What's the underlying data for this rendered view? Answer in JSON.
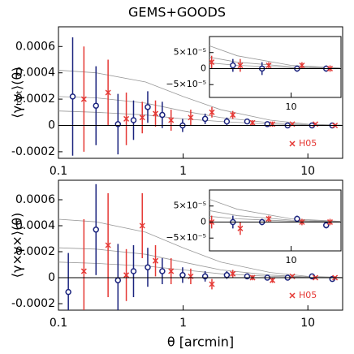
{
  "chart_data": [
    {
      "type": "errorbar",
      "title": "GEMS+GOODS",
      "y_label": "⟨γₜγₜ⟩(θ)",
      "x_scale": "log",
      "xlim": [
        0.1,
        19
      ],
      "xticks": [
        0.1,
        1,
        10
      ],
      "ylim": [
        -0.00025,
        0.00075
      ],
      "yticks": [
        -0.0002,
        0,
        0.0002,
        0.0004,
        0.0006
      ],
      "legend_position": "lower right",
      "series": [
        {
          "color": "#999999",
          "style": "line",
          "x": [
            0.1,
            0.2,
            0.5,
            1,
            2,
            5,
            10,
            19
          ],
          "values": [
            0.00042,
            0.0004,
            0.00033,
            0.00022,
            0.00012,
            4e-05,
            1e-05,
            2e-06
          ]
        },
        {
          "color": "#999999",
          "style": "line",
          "x": [
            0.1,
            0.2,
            0.5,
            1,
            2,
            5,
            10,
            19
          ],
          "values": [
            0.00022,
            0.00021,
            0.00017,
            0.00011,
            6e-05,
            2e-05,
            6e-06,
            1e-06
          ]
        },
        {
          "color": "#999999",
          "style": "line",
          "x": [
            0.1,
            0.2,
            0.5,
            1,
            2,
            5,
            10,
            19
          ],
          "values": [
            0.00011,
            0.0001,
            8e-05,
            5e-05,
            3e-05,
            1e-05,
            3e-06,
            1e-06
          ]
        },
        {
          "color": "#1a237e",
          "style": "errorbar",
          "marker": "circle",
          "x": [
            0.13,
            0.2,
            0.3,
            0.4,
            0.52,
            0.68,
            0.99,
            1.5,
            2.24,
            3.26,
            4.73,
            6.88,
            10.8,
            15.7
          ],
          "values": [
            0.00022,
            0.00015,
            1e-05,
            4e-05,
            0.00014,
            8e-05,
            0.0,
            5e-05,
            3e-05,
            3e-05,
            1e-05,
            0.0,
            0.0,
            0.0
          ],
          "errors": [
            0.00045,
            0.0003,
            0.00023,
            0.00015,
            0.00012,
            0.0001,
            5e-05,
            4e-05,
            3e-05,
            2e-05,
            2e-05,
            2e-05,
            1e-05,
            1e-05
          ]
        },
        {
          "name": "H05",
          "color": "#e53935",
          "style": "errorbar",
          "marker": "x",
          "x": [
            0.16,
            0.25,
            0.35,
            0.47,
            0.6,
            0.8,
            1.15,
            1.7,
            2.5,
            3.6,
            5.2,
            7.5,
            11.5,
            16.5
          ],
          "values": [
            0.0002,
            0.00025,
            5e-05,
            6e-05,
            9e-05,
            4e-05,
            6e-05,
            0.0001,
            8e-05,
            2e-05,
            1e-05,
            1e-05,
            1e-05,
            0.0
          ],
          "errors": [
            0.0004,
            0.00025,
            0.0002,
            0.00012,
            0.0001,
            8e-05,
            6e-05,
            4e-05,
            3e-05,
            2e-05,
            2e-05,
            1e-05,
            1e-05,
            1e-05
          ]
        }
      ],
      "inset": {
        "xlim": [
          3.5,
          19
        ],
        "xticks": [
          10
        ],
        "ylim": [
          -9e-05,
          0.0001
        ],
        "yticks": [
          {
            "value": 5e-05,
            "label": "5×10⁻⁵"
          },
          0,
          {
            "value": -5e-05,
            "label": "−5×10⁻⁵"
          }
        ]
      }
    },
    {
      "type": "errorbar",
      "y_label": "⟨γ×γ×⟩(θ)",
      "x_label": "θ [arcmin]",
      "x_scale": "log",
      "xlim": [
        0.1,
        19
      ],
      "xticks": [
        0.1,
        1,
        10
      ],
      "ylim": [
        -0.00025,
        0.00075
      ],
      "yticks": [
        -0.0002,
        0,
        0.0002,
        0.0004,
        0.0006
      ],
      "legend_position": "lower right",
      "series": [
        {
          "color": "#999999",
          "style": "line",
          "x": [
            0.1,
            0.2,
            0.5,
            1,
            2,
            5,
            10,
            19
          ],
          "values": [
            0.00045,
            0.00043,
            0.00035,
            0.00023,
            0.00012,
            4e-05,
            1e-05,
            2e-06
          ]
        },
        {
          "color": "#999999",
          "style": "line",
          "x": [
            0.1,
            0.2,
            0.5,
            1,
            2,
            5,
            10,
            19
          ],
          "values": [
            0.00023,
            0.00022,
            0.00018,
            0.00012,
            6e-05,
            2e-05,
            6e-06,
            1e-06
          ]
        },
        {
          "color": "#999999",
          "style": "line",
          "x": [
            0.1,
            0.2,
            0.5,
            1,
            2,
            5,
            10,
            19
          ],
          "values": [
            0.00012,
            0.00011,
            9e-05,
            6e-05,
            3e-05,
            1e-05,
            3e-06,
            1e-06
          ]
        },
        {
          "color": "#1a237e",
          "style": "errorbar",
          "marker": "circle",
          "x": [
            0.12,
            0.2,
            0.3,
            0.4,
            0.52,
            0.68,
            0.99,
            1.5,
            2.24,
            3.26,
            4.73,
            6.88,
            10.8,
            15.7
          ],
          "values": [
            -0.00011,
            0.00037,
            -2e-05,
            5e-05,
            8e-05,
            5e-05,
            2e-05,
            1e-05,
            2e-05,
            1e-05,
            0.0,
            0.0,
            1e-05,
            -1e-05
          ],
          "errors": [
            0.0003,
            0.00035,
            0.00028,
            0.0002,
            0.00015,
            0.0001,
            6e-05,
            4e-05,
            3e-05,
            2e-05,
            2e-05,
            1e-05,
            1e-05,
            1e-05
          ]
        },
        {
          "name": "H05",
          "color": "#e53935",
          "style": "errorbar",
          "marker": "x",
          "x": [
            0.16,
            0.25,
            0.35,
            0.47,
            0.6,
            0.8,
            1.15,
            1.7,
            2.5,
            3.6,
            5.2,
            7.5,
            11.5,
            16.5
          ],
          "values": [
            5e-05,
            0.00025,
            2e-05,
            0.0004,
            0.00013,
            5e-05,
            1e-05,
            -5e-05,
            3e-05,
            0.0,
            -2e-05,
            1e-05,
            0.0,
            0.0
          ],
          "errors": [
            0.0004,
            0.0004,
            0.0002,
            0.00025,
            0.00012,
            0.0001,
            6e-05,
            4e-05,
            3e-05,
            2e-05,
            2e-05,
            1e-05,
            1e-05,
            1e-05
          ]
        }
      ],
      "inset": {
        "xlim": [
          3.5,
          19
        ],
        "xticks": [
          10
        ],
        "ylim": [
          -9e-05,
          0.0001
        ],
        "yticks": [
          {
            "value": 5e-05,
            "label": "5×10⁻⁵"
          },
          0,
          {
            "value": -5e-05,
            "label": "−5×10⁻⁵"
          }
        ]
      }
    }
  ]
}
